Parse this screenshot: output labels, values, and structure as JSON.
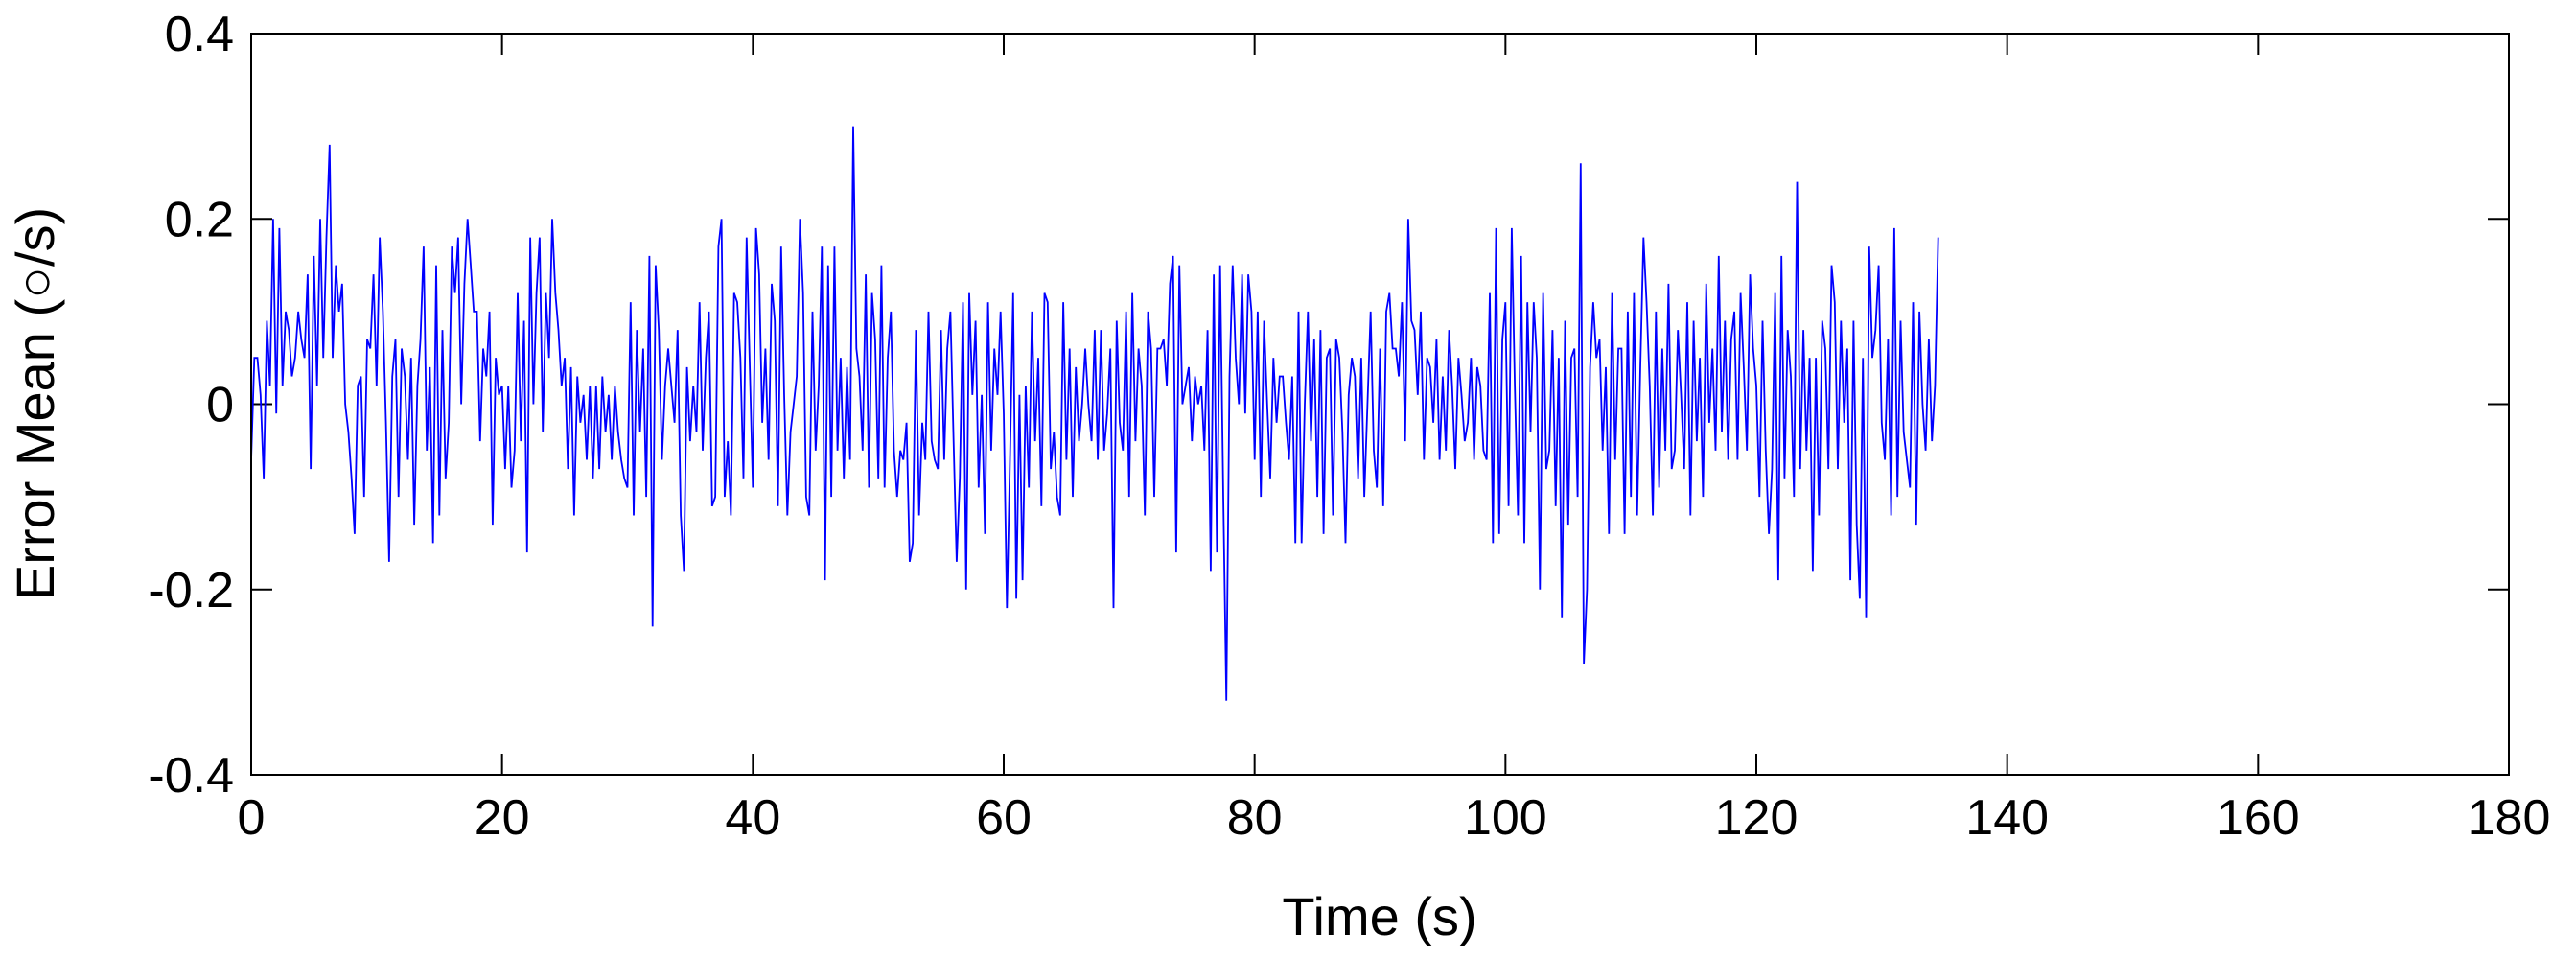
{
  "chart_data": {
    "type": "line",
    "title": "",
    "xlabel": "Time (s)",
    "ylabel": "Error Mean (○/s)",
    "xlim": [
      0,
      180
    ],
    "ylim": [
      -0.4,
      0.4
    ],
    "grid": false,
    "line_color": "#0000ff",
    "x_ticks": [
      0,
      20,
      40,
      60,
      80,
      100,
      120,
      140,
      160,
      180
    ],
    "x_tick_labels": [
      "0",
      "20",
      "40",
      "60",
      "80",
      "100",
      "120",
      "140",
      "160",
      "180"
    ],
    "y_ticks": [
      0.4,
      0.2,
      0,
      -0.2,
      -0.4
    ],
    "y_tick_labels": [
      "0.4",
      "0.2",
      "0",
      "-0.2",
      "-0.4"
    ],
    "series": [
      {
        "x_start": 0,
        "x_step": 0.25,
        "y": [
          -0.06,
          0.05,
          0.05,
          0.01,
          -0.08,
          0.09,
          0.02,
          0.2,
          -0.01,
          0.19,
          0.02,
          0.1,
          0.08,
          0.03,
          0.05,
          0.1,
          0.07,
          0.05,
          0.14,
          -0.07,
          0.16,
          0.02,
          0.2,
          0.05,
          0.18,
          0.28,
          0.05,
          0.15,
          0.1,
          0.13,
          0.0,
          -0.03,
          -0.08,
          -0.14,
          0.02,
          0.03,
          -0.1,
          0.07,
          0.06,
          0.14,
          0.02,
          0.18,
          0.1,
          -0.02,
          -0.17,
          0.03,
          0.07,
          -0.1,
          0.06,
          0.03,
          -0.06,
          0.05,
          -0.13,
          0.02,
          0.07,
          0.17,
          -0.05,
          0.04,
          -0.15,
          0.15,
          -0.12,
          0.08,
          -0.08,
          -0.02,
          0.17,
          0.12,
          0.18,
          0.0,
          0.13,
          0.2,
          0.15,
          0.1,
          0.1,
          -0.04,
          0.06,
          0.03,
          0.1,
          -0.13,
          0.05,
          0.01,
          0.02,
          -0.07,
          0.02,
          -0.09,
          -0.05,
          0.12,
          -0.04,
          0.09,
          -0.16,
          0.18,
          0.0,
          0.12,
          0.18,
          -0.03,
          0.12,
          0.05,
          0.2,
          0.12,
          0.08,
          0.02,
          0.05,
          -0.07,
          0.04,
          -0.12,
          0.03,
          -0.02,
          0.01,
          -0.06,
          0.02,
          -0.08,
          0.02,
          -0.07,
          0.03,
          -0.03,
          0.01,
          -0.06,
          0.02,
          -0.03,
          -0.06,
          -0.08,
          -0.09,
          0.11,
          -0.12,
          0.08,
          -0.03,
          0.06,
          -0.1,
          0.16,
          -0.24,
          0.15,
          0.08,
          -0.06,
          0.02,
          0.06,
          0.02,
          -0.02,
          0.08,
          -0.12,
          -0.18,
          0.04,
          -0.04,
          0.02,
          -0.03,
          0.11,
          -0.05,
          0.05,
          0.1,
          -0.11,
          -0.1,
          0.17,
          0.2,
          -0.1,
          -0.04,
          -0.12,
          0.12,
          0.11,
          0.05,
          -0.08,
          0.18,
          0.04,
          -0.09,
          0.19,
          0.14,
          -0.02,
          0.06,
          -0.06,
          0.13,
          0.09,
          -0.11,
          0.17,
          0.01,
          -0.12,
          -0.03,
          0.0,
          0.03,
          0.2,
          0.12,
          -0.1,
          -0.12,
          0.1,
          -0.05,
          0.02,
          0.17,
          -0.19,
          0.15,
          -0.1,
          0.17,
          -0.05,
          0.05,
          -0.08,
          0.04,
          -0.06,
          0.3,
          0.06,
          0.03,
          -0.05,
          0.14,
          -0.09,
          0.12,
          0.07,
          -0.08,
          0.15,
          -0.09,
          0.05,
          0.1,
          -0.05,
          -0.1,
          -0.05,
          -0.06,
          -0.02,
          -0.17,
          -0.15,
          0.08,
          -0.12,
          -0.02,
          -0.06,
          0.1,
          -0.04,
          -0.06,
          -0.07,
          0.08,
          -0.06,
          0.06,
          0.1,
          -0.04,
          -0.17,
          -0.08,
          0.11,
          -0.2,
          0.12,
          0.01,
          0.09,
          -0.09,
          0.01,
          -0.14,
          0.11,
          -0.05,
          0.06,
          0.01,
          0.1,
          -0.01,
          -0.22,
          -0.06,
          0.12,
          -0.21,
          0.01,
          -0.19,
          0.02,
          -0.09,
          0.1,
          -0.04,
          0.05,
          -0.11,
          0.12,
          0.11,
          -0.07,
          -0.03,
          -0.1,
          -0.12,
          0.11,
          -0.06,
          0.06,
          -0.1,
          0.04,
          -0.04,
          0.0,
          0.06,
          0.0,
          -0.04,
          0.08,
          -0.06,
          0.08,
          -0.05,
          -0.01,
          0.06,
          -0.22,
          0.09,
          -0.02,
          -0.05,
          0.1,
          -0.1,
          0.12,
          -0.04,
          0.06,
          0.02,
          -0.12,
          0.1,
          0.06,
          -0.1,
          0.06,
          0.06,
          0.07,
          0.02,
          0.13,
          0.16,
          -0.16,
          0.15,
          0.0,
          0.02,
          0.04,
          -0.04,
          0.03,
          0.0,
          0.02,
          -0.05,
          0.08,
          -0.18,
          0.14,
          -0.16,
          0.15,
          -0.1,
          -0.32,
          0.03,
          0.15,
          0.05,
          0.0,
          0.14,
          -0.01,
          0.14,
          0.1,
          -0.06,
          0.1,
          -0.1,
          0.09,
          0.0,
          -0.08,
          0.05,
          -0.02,
          0.03,
          0.03,
          -0.02,
          -0.06,
          0.03,
          -0.15,
          0.1,
          -0.15,
          0.0,
          0.1,
          -0.04,
          0.07,
          -0.1,
          0.08,
          -0.14,
          0.05,
          0.06,
          -0.12,
          0.07,
          0.05,
          -0.03,
          -0.15,
          0.01,
          0.05,
          0.03,
          -0.08,
          0.05,
          -0.1,
          0.0,
          0.1,
          -0.05,
          -0.09,
          0.06,
          -0.11,
          0.1,
          0.12,
          0.06,
          0.06,
          0.03,
          0.11,
          -0.04,
          0.2,
          0.09,
          0.08,
          0.01,
          0.1,
          -0.06,
          0.05,
          0.04,
          -0.02,
          0.07,
          -0.06,
          0.03,
          -0.05,
          0.08,
          0.02,
          -0.07,
          0.05,
          0.01,
          -0.04,
          -0.02,
          0.05,
          -0.06,
          0.04,
          0.02,
          -0.05,
          -0.06,
          0.12,
          -0.15,
          0.19,
          -0.14,
          0.07,
          0.11,
          -0.11,
          0.19,
          0.02,
          -0.12,
          0.16,
          -0.15,
          0.11,
          -0.03,
          0.11,
          0.05,
          -0.2,
          0.12,
          -0.07,
          -0.05,
          0.08,
          -0.11,
          0.05,
          -0.23,
          0.09,
          -0.13,
          0.05,
          0.06,
          -0.1,
          0.26,
          -0.28,
          -0.2,
          0.04,
          0.11,
          0.05,
          0.07,
          -0.05,
          0.04,
          -0.14,
          0.12,
          -0.06,
          0.06,
          0.06,
          -0.14,
          0.1,
          -0.1,
          0.12,
          -0.12,
          0.04,
          0.18,
          0.11,
          0.02,
          -0.12,
          0.1,
          -0.09,
          0.06,
          -0.05,
          0.13,
          -0.07,
          -0.05,
          0.08,
          0.01,
          -0.07,
          0.11,
          -0.12,
          0.09,
          -0.04,
          0.05,
          -0.1,
          0.13,
          -0.02,
          0.06,
          -0.05,
          0.16,
          -0.03,
          0.09,
          -0.06,
          0.07,
          0.1,
          -0.06,
          0.12,
          0.04,
          -0.05,
          0.14,
          0.06,
          0.02,
          -0.1,
          0.09,
          -0.05,
          -0.14,
          -0.07,
          0.12,
          -0.19,
          0.16,
          -0.08,
          0.08,
          0.03,
          -0.1,
          0.24,
          -0.07,
          0.08,
          -0.05,
          0.05,
          -0.18,
          0.05,
          -0.12,
          0.09,
          0.06,
          -0.07,
          0.15,
          0.11,
          -0.07,
          0.09,
          -0.02,
          0.06,
          -0.19,
          0.09,
          -0.13,
          -0.21,
          0.05,
          -0.23,
          0.17,
          0.05,
          0.08,
          0.15,
          -0.02,
          -0.06,
          0.07,
          -0.12,
          0.19,
          -0.1,
          0.09,
          -0.03,
          -0.06,
          -0.09,
          0.11,
          -0.13,
          0.1,
          0.0,
          -0.05,
          0.07,
          -0.04,
          0.02,
          0.18
        ]
      }
    ]
  }
}
